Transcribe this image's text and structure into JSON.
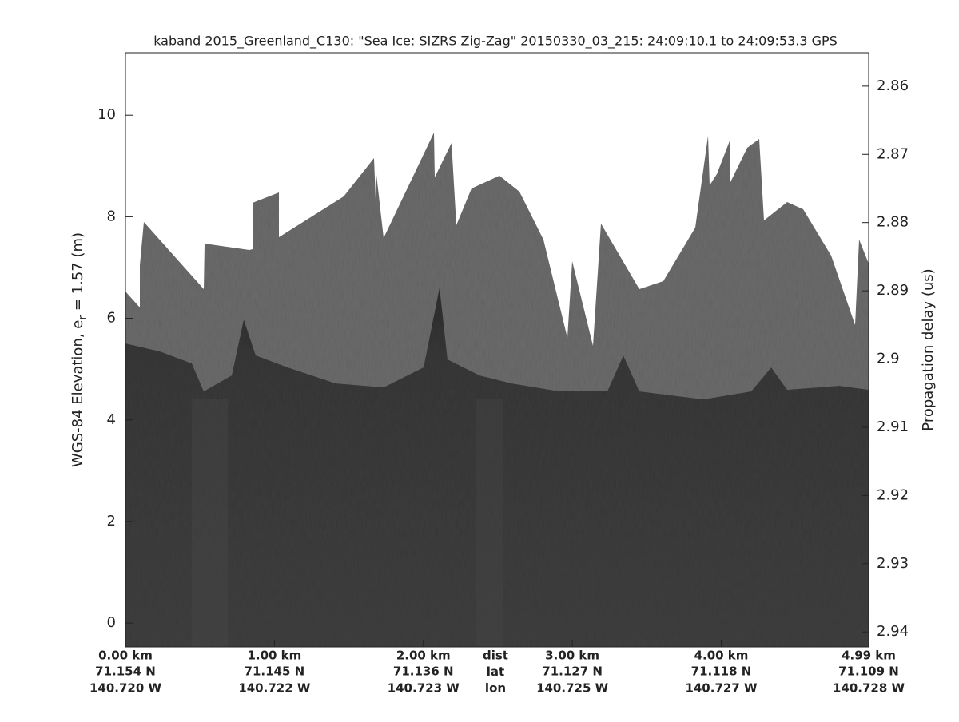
{
  "chart_data": {
    "type": "echogram",
    "title": "kaband 2015_Greenland_C130: \"Sea Ice: SIZRS Zig-Zag\"  20150330_03_215: 24:09:10.1 to 24:09:53.3 GPS",
    "ylabel_parts": [
      "WGS-84 Elevation, e",
      "r",
      " = 1.57 (m)"
    ],
    "y2label": "Propagation delay (us)",
    "xlim": [
      0,
      4.99
    ],
    "xticks": [
      {
        "value": 0,
        "label": "0.00 km"
      },
      {
        "value": 1.0,
        "label": "1.00 km"
      },
      {
        "value": 2.0,
        "label": "2.00 km"
      },
      {
        "value": 3.0,
        "label": "3.00 km"
      },
      {
        "value": 4.0,
        "label": "4.00 km"
      },
      {
        "value": 4.99,
        "label": "4.99 km"
      }
    ],
    "lat_labels": [
      "71.154 N",
      "71.145 N",
      "71.136 N",
      "71.127 N",
      "71.118 N",
      "71.109 N"
    ],
    "lon_labels": [
      "140.720 W",
      "140.722 W",
      "140.723 W",
      "140.725 W",
      "140.727 W",
      "140.728 W"
    ],
    "row_labels": [
      "dist",
      "lat",
      "lon"
    ],
    "ylim": [
      -0.47,
      11.23
    ],
    "yticks": [
      0,
      2,
      4,
      6,
      8,
      10
    ],
    "y2lim": [
      2.9422,
      2.8551
    ],
    "y2ticks": [
      2.86,
      2.87,
      2.88,
      2.89,
      2.9,
      2.91,
      2.92,
      2.93,
      2.94
    ]
  }
}
